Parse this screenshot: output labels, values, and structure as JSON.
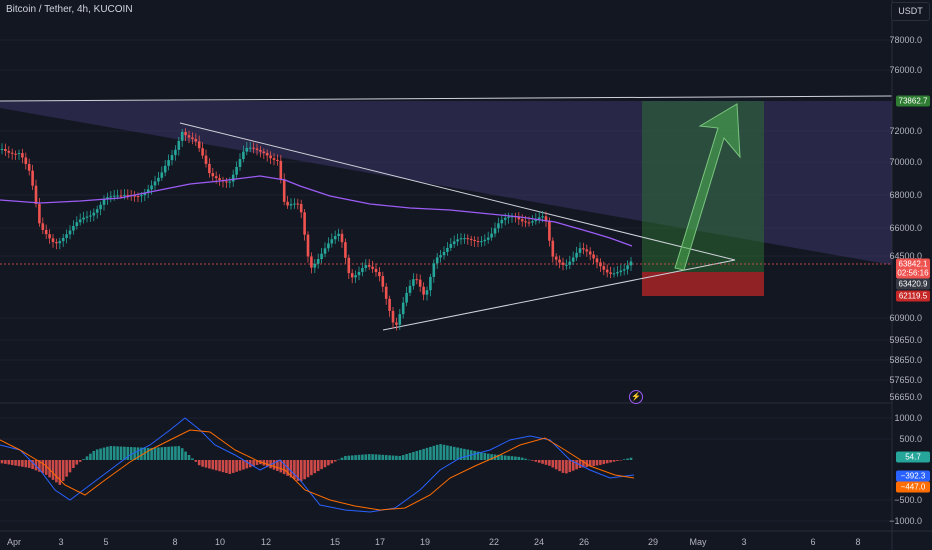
{
  "header": {
    "symbol": "Bitcoin / Tether, 4h, KUCOIN",
    "currency": "USDT"
  },
  "price_axis": {
    "ticks": [
      "78000.0",
      "76000.0",
      "72000.0",
      "70000.0",
      "68000.0",
      "66000.0",
      "64500.0",
      "60900.0",
      "59650.0",
      "58650.0",
      "57650.0",
      "56650.0"
    ],
    "tags": {
      "resistance": "73862.7",
      "current": "63842.1",
      "countdown": "02:56:16",
      "prev_close": "63420.9",
      "stop": "62119.5"
    }
  },
  "macd_axis": {
    "ticks": [
      "1000.0",
      "500.0",
      "−500.0",
      "−1000.0"
    ],
    "tags": {
      "histogram": "54.7",
      "macd": "−392.3",
      "signal": "−447.0"
    }
  },
  "time_axis": {
    "ticks": [
      "Apr",
      "3",
      "5",
      "8",
      "10",
      "12",
      "15",
      "17",
      "19",
      "22",
      "24",
      "26",
      "29",
      "May",
      "3",
      "6",
      "8"
    ]
  },
  "colors": {
    "background": "#131722",
    "up": "#26a69a",
    "down": "#ef5350",
    "ma": "#9c5cf5",
    "macd_line": "#2962ff",
    "signal_line": "#ff6d00",
    "target_zone": "#2e7d32",
    "stop_zone": "#b71c1c",
    "arrow": "#4caf50"
  },
  "icons": {
    "flash": "flash-icon"
  }
}
